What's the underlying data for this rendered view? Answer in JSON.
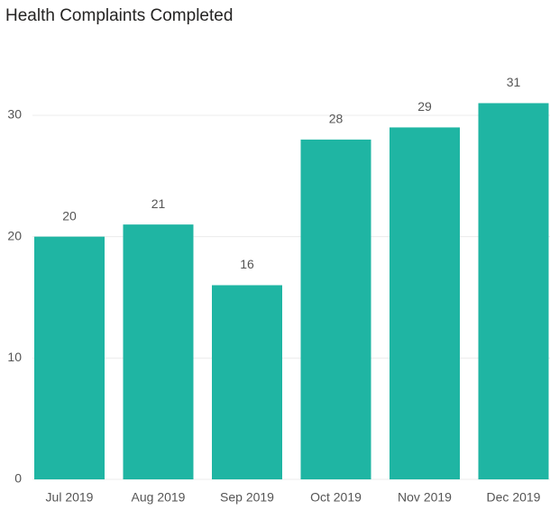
{
  "chart_data": {
    "type": "bar",
    "title": "Health Complaints Completed",
    "categories": [
      "Jul 2019",
      "Aug 2019",
      "Sep 2019",
      "Oct 2019",
      "Nov 2019",
      "Dec 2019"
    ],
    "values": [
      20,
      21,
      16,
      28,
      29,
      31
    ],
    "color": "#1fb5a3",
    "ylim": [
      0,
      35
    ],
    "yticks": [
      0,
      10,
      20,
      30
    ],
    "grid": true
  }
}
